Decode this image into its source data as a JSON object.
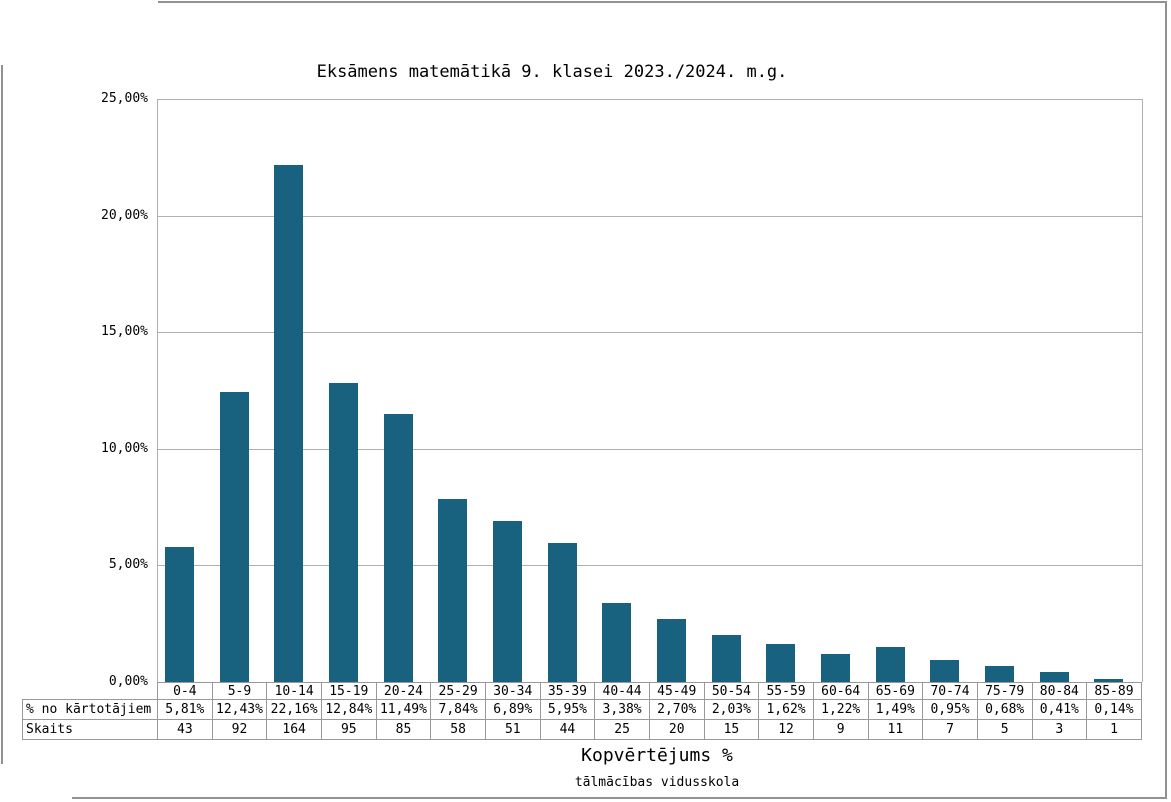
{
  "chart_data": {
    "type": "bar",
    "title": "Eksāmens matemātikā 9. klasei 2023./2024. m.g.",
    "xlabel": "Kopvērtējums %",
    "footnote": "tālmācības vidusskola",
    "categories": [
      "0-4",
      "5-9",
      "10-14",
      "15-19",
      "20-24",
      "25-29",
      "30-34",
      "35-39",
      "40-44",
      "45-49",
      "50-54",
      "55-59",
      "60-64",
      "65-69",
      "70-74",
      "75-79",
      "80-84",
      "85-89"
    ],
    "series": [
      {
        "name": "% no kārtotājiem",
        "values": [
          5.81,
          12.43,
          22.16,
          12.84,
          11.49,
          7.84,
          6.89,
          5.95,
          3.38,
          2.7,
          2.03,
          1.62,
          1.22,
          1.49,
          0.95,
          0.68,
          0.41,
          0.14
        ],
        "labels": [
          "5,81%",
          "12,43%",
          "22,16%",
          "12,84%",
          "11,49%",
          "7,84%",
          "6,89%",
          "5,95%",
          "3,38%",
          "2,70%",
          "2,03%",
          "1,62%",
          "1,22%",
          "1,49%",
          "0,95%",
          "0,68%",
          "0,41%",
          "0,14%"
        ]
      },
      {
        "name": "Skaits",
        "values": [
          43,
          92,
          164,
          95,
          85,
          58,
          51,
          44,
          25,
          20,
          15,
          12,
          9,
          11,
          7,
          5,
          3,
          1
        ]
      }
    ],
    "ylim": [
      0,
      25
    ],
    "yticks": [
      {
        "value": 0,
        "label": "0,00%"
      },
      {
        "value": 5,
        "label": "5,00%"
      },
      {
        "value": 10,
        "label": "10,00%"
      },
      {
        "value": 15,
        "label": "15,00%"
      },
      {
        "value": 20,
        "label": "20,00%"
      },
      {
        "value": 25,
        "label": "25,00%"
      }
    ],
    "grid": true,
    "legend": "none",
    "bar_color": "#18627F",
    "gridline_color": "#b0b0b0",
    "table_border_color": "#999999"
  }
}
